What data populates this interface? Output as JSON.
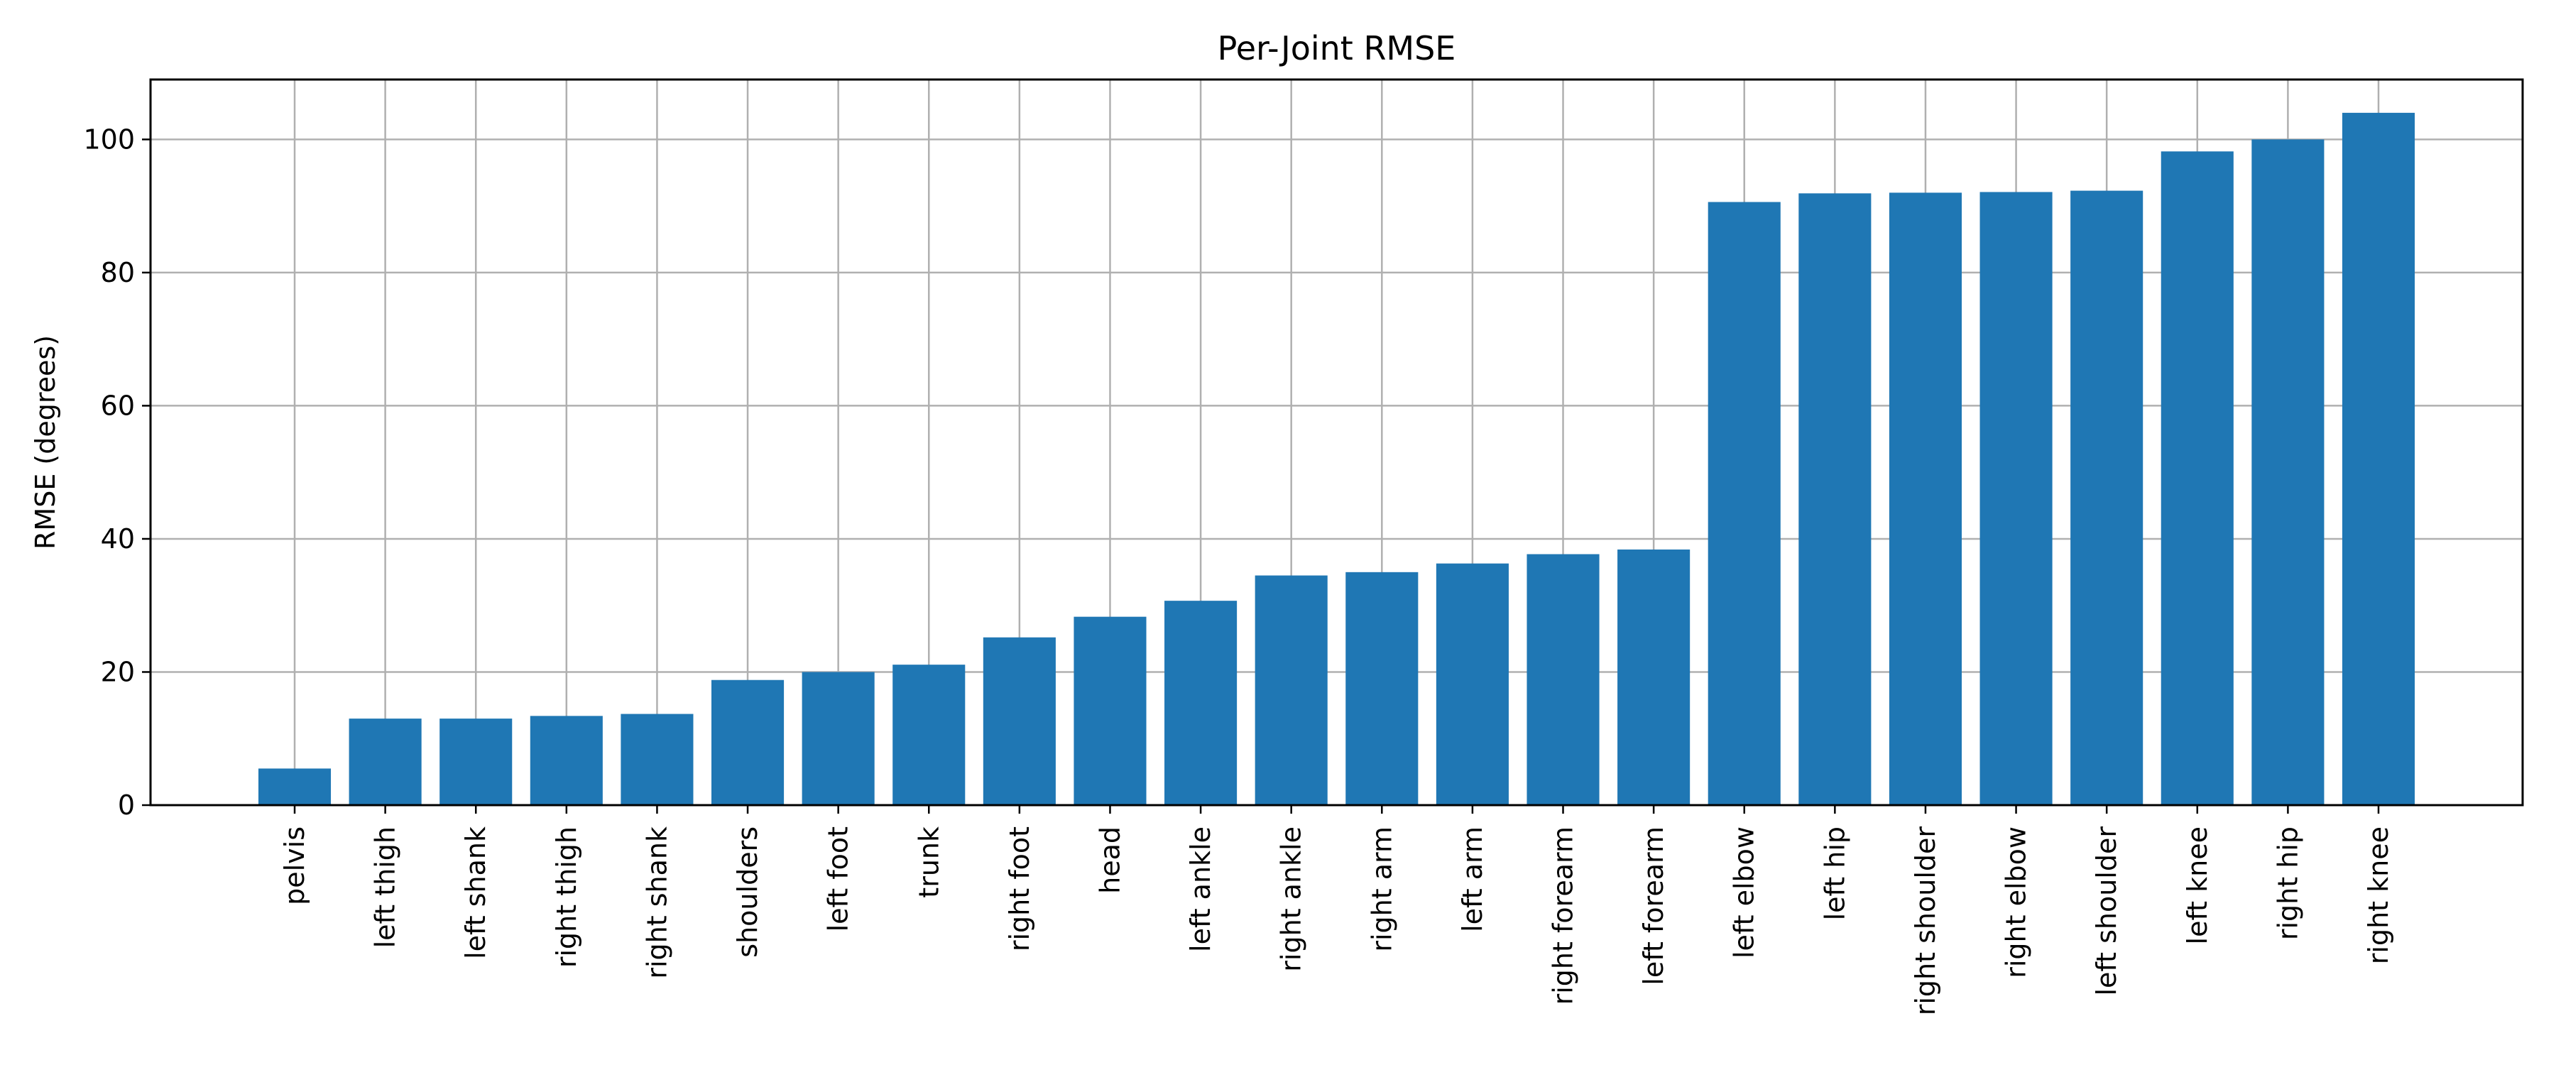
{
  "chart_data": {
    "type": "bar",
    "title": "Per-Joint RMSE",
    "xlabel": "",
    "ylabel": "RMSE (degrees)",
    "ylim": [
      0,
      109
    ],
    "yticks": [
      0,
      20,
      40,
      60,
      80,
      100
    ],
    "grid": true,
    "legend": "none",
    "categories": [
      "pelvis",
      "left thigh",
      "left shank",
      "right thigh",
      "right shank",
      "shoulders",
      "left foot",
      "trunk",
      "right foot",
      "head",
      "left ankle",
      "right ankle",
      "right arm",
      "left arm",
      "right forearm",
      "left forearm",
      "left elbow",
      "left hip",
      "right shoulder",
      "right elbow",
      "left shoulder",
      "left knee",
      "right hip",
      "right knee"
    ],
    "values": [
      5.5,
      13.0,
      13.0,
      13.4,
      13.7,
      18.8,
      20.0,
      21.1,
      25.2,
      28.3,
      30.7,
      34.5,
      35.0,
      36.3,
      37.7,
      38.4,
      90.6,
      91.9,
      92.0,
      92.1,
      92.3,
      98.2,
      100.0,
      104.0
    ],
    "colors": {
      "bar": "#1f77b4",
      "grid": "#b0b0b0",
      "axis": "#000000"
    }
  }
}
